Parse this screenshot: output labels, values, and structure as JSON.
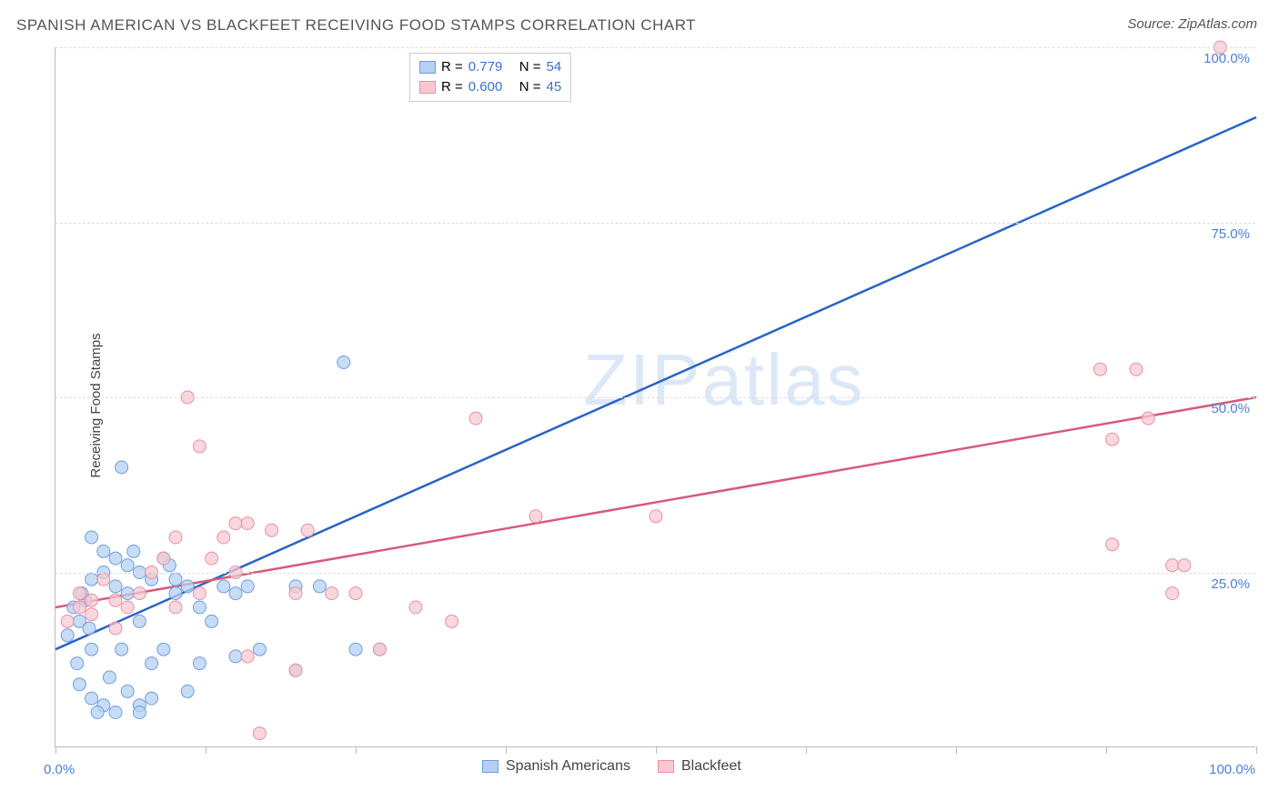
{
  "title": "SPANISH AMERICAN VS BLACKFEET RECEIVING FOOD STAMPS CORRELATION CHART",
  "source_prefix": "Source: ",
  "source_name": "ZipAtlas.com",
  "ylabel": "Receiving Food Stamps",
  "watermark": "ZIPatlas",
  "chart": {
    "type": "scatter",
    "xlim": [
      0,
      100
    ],
    "ylim": [
      0,
      100
    ],
    "x_ticks": [
      0,
      12.5,
      25,
      37.5,
      50,
      62.5,
      75,
      87.5,
      100
    ],
    "y_gridlines": [
      25,
      50,
      75,
      100
    ],
    "y_grid_labels": [
      "25.0%",
      "50.0%",
      "75.0%",
      "100.0%"
    ],
    "x_origin_label": "0.0%",
    "x_max_label": "100.0%",
    "background_color": "#ffffff",
    "grid_color": "#dddddd",
    "axis_color": "#bbbbbb",
    "series": [
      {
        "name": "Spanish Americans",
        "color_fill": "#b7d0f2",
        "color_stroke": "#6a9fe0",
        "line_color": "#2a63c9",
        "marker_radius": 7,
        "marker_opacity": 0.75,
        "R": "0.779",
        "N": "54",
        "regression": {
          "x1": 0,
          "y1": 14,
          "x2": 100,
          "y2": 90
        },
        "points": [
          [
            1,
            16
          ],
          [
            2,
            18
          ],
          [
            1.5,
            20
          ],
          [
            2.5,
            21
          ],
          [
            3,
            14
          ],
          [
            3,
            24
          ],
          [
            4,
            25
          ],
          [
            4,
            28
          ],
          [
            5,
            27
          ],
          [
            5,
            23
          ],
          [
            6,
            26
          ],
          [
            6,
            22
          ],
          [
            7,
            25
          ],
          [
            7,
            18
          ],
          [
            8,
            24
          ],
          [
            8,
            12
          ],
          [
            2,
            9
          ],
          [
            3,
            7
          ],
          [
            4,
            6
          ],
          [
            5,
            5
          ],
          [
            6,
            8
          ],
          [
            7,
            6
          ],
          [
            8,
            7
          ],
          [
            5.5,
            40
          ],
          [
            3,
            30
          ],
          [
            9,
            27
          ],
          [
            9,
            14
          ],
          [
            10,
            22
          ],
          [
            10,
            24
          ],
          [
            11,
            23
          ],
          [
            11,
            8
          ],
          [
            12,
            12
          ],
          [
            12,
            20
          ],
          [
            13,
            18
          ],
          [
            14,
            23
          ],
          [
            15,
            22
          ],
          [
            15,
            13
          ],
          [
            16,
            23
          ],
          [
            17,
            14
          ],
          [
            20,
            11
          ],
          [
            20,
            23
          ],
          [
            22,
            23
          ],
          [
            24,
            55
          ],
          [
            25,
            14
          ],
          [
            27,
            14
          ],
          [
            7,
            5
          ],
          [
            3.5,
            5
          ],
          [
            4.5,
            10
          ],
          [
            5.5,
            14
          ],
          [
            6.5,
            28
          ],
          [
            2.2,
            22
          ],
          [
            1.8,
            12
          ],
          [
            2.8,
            17
          ],
          [
            9.5,
            26
          ]
        ]
      },
      {
        "name": "Blackfeet",
        "color_fill": "#f6c9d2",
        "color_stroke": "#e98fa5",
        "line_color": "#d85a7a",
        "marker_radius": 7,
        "marker_opacity": 0.75,
        "R": "0.600",
        "N": "45",
        "regression": {
          "x1": 0,
          "y1": 20,
          "x2": 100,
          "y2": 50
        },
        "points": [
          [
            1,
            18
          ],
          [
            2,
            20
          ],
          [
            2,
            22
          ],
          [
            3,
            21
          ],
          [
            3,
            19
          ],
          [
            4,
            24
          ],
          [
            5,
            21
          ],
          [
            5,
            17
          ],
          [
            6,
            20
          ],
          [
            7,
            22
          ],
          [
            8,
            25
          ],
          [
            9,
            27
          ],
          [
            10,
            20
          ],
          [
            10,
            30
          ],
          [
            11,
            50
          ],
          [
            12,
            43
          ],
          [
            13,
            27
          ],
          [
            14,
            30
          ],
          [
            15,
            32
          ],
          [
            16,
            32
          ],
          [
            16,
            13
          ],
          [
            17,
            2
          ],
          [
            18,
            31
          ],
          [
            20,
            22
          ],
          [
            20,
            11
          ],
          [
            21,
            31
          ],
          [
            23,
            22
          ],
          [
            25,
            22
          ],
          [
            27,
            14
          ],
          [
            30,
            20
          ],
          [
            33,
            18
          ],
          [
            35,
            47
          ],
          [
            40,
            33
          ],
          [
            50,
            33
          ],
          [
            87,
            54
          ],
          [
            88,
            44
          ],
          [
            90,
            54
          ],
          [
            91,
            47
          ],
          [
            88,
            29
          ],
          [
            93,
            22
          ],
          [
            93,
            26
          ],
          [
            94,
            26
          ],
          [
            97,
            100
          ],
          [
            15,
            25
          ],
          [
            12,
            22
          ]
        ]
      }
    ]
  },
  "legend_top": {
    "R_label": "R =",
    "N_label": "N ="
  },
  "legend_bottom_labels": [
    "Spanish Americans",
    "Blackfeet"
  ]
}
